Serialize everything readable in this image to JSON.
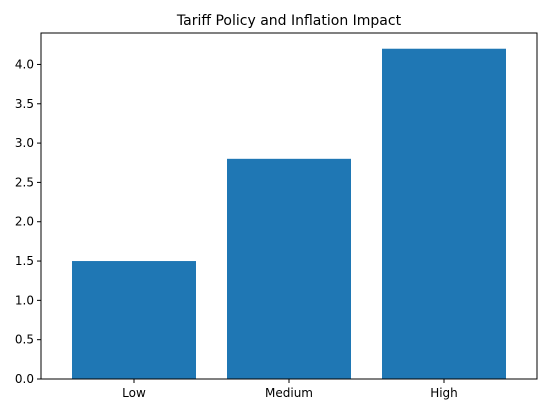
{
  "chart_data": {
    "type": "bar",
    "title": "Tariff Policy and Inflation Impact",
    "categories": [
      "Low",
      "Medium",
      "High"
    ],
    "values": [
      1.5,
      2.8,
      4.2
    ],
    "xlabel": "",
    "ylabel": "",
    "ylim": [
      0,
      4.4
    ],
    "yticks": [
      0.0,
      0.5,
      1.0,
      1.5,
      2.0,
      2.5,
      3.0,
      3.5,
      4.0
    ],
    "ytick_labels": [
      "0.0",
      "0.5",
      "1.0",
      "1.5",
      "2.0",
      "2.5",
      "3.0",
      "3.5",
      "4.0"
    ],
    "bar_color": "#1f77b4",
    "grid": false,
    "legend": "none"
  }
}
